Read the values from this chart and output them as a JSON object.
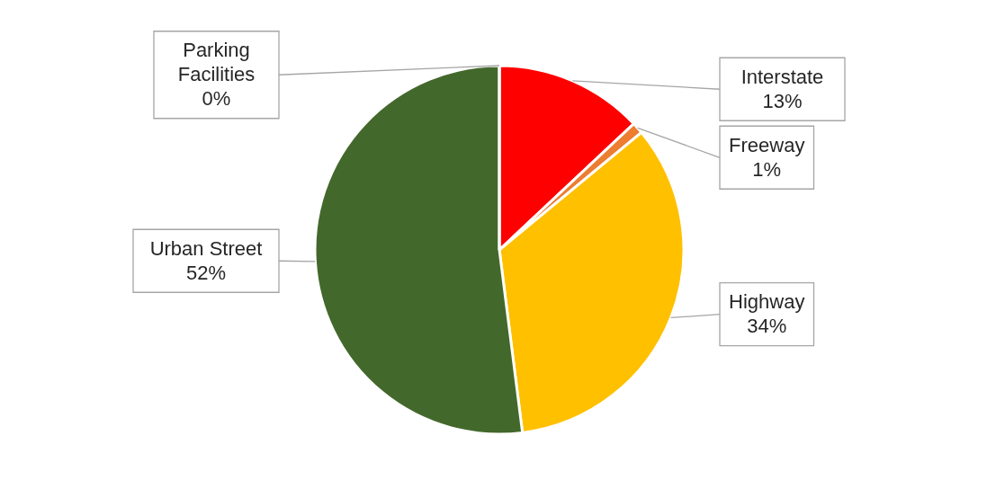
{
  "chart_data": {
    "type": "pie",
    "categories": [
      "Interstate",
      "Freeway",
      "Highway",
      "Urban Street",
      "Parking Facilities"
    ],
    "values": [
      13,
      1,
      34,
      52,
      0
    ],
    "value_labels": [
      "13%",
      "1%",
      "34%",
      "52%",
      "0%"
    ],
    "colors": [
      "#ff0000",
      "#ed7d31",
      "#ffc000",
      "#43682b",
      "#5b9bd5"
    ]
  }
}
